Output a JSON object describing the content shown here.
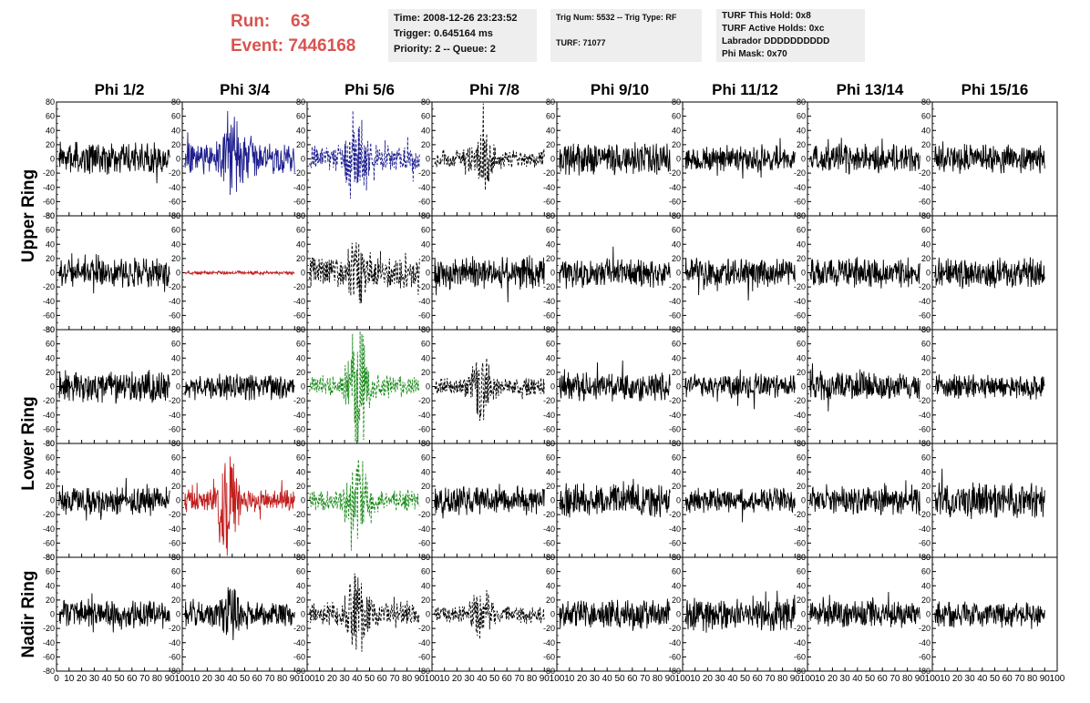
{
  "header": {
    "run_label": "Run:",
    "run_value": "63",
    "event_label": "Event:",
    "event_value": "7446168"
  },
  "info_boxes": {
    "timing": [
      "Time: 2008-12-26 23:23:52",
      "Trigger: 0.645164 ms",
      "Priority: 2 -- Queue: 2"
    ],
    "trigger": [
      "Trig Num: 5532 -- Trig Type: RF",
      "",
      "TURF: 71077"
    ],
    "turf": [
      "TURF This Hold: 0x8",
      "TURF Active Holds: 0xc",
      "Labrador DDDDDDDDDD",
      "Phi Mask: 0x70"
    ]
  },
  "chart_data": {
    "type": "line",
    "columns": [
      "Phi 1/2",
      "Phi 3/4",
      "Phi 5/6",
      "Phi 7/8",
      "Phi 9/10",
      "Phi 11/12",
      "Phi 13/14",
      "Phi 15/16"
    ],
    "row_labels": [
      "Upper Ring",
      "Lower Ring",
      "Nadir Ring"
    ],
    "xlim": [
      0,
      100
    ],
    "ylim": [
      -80,
      80
    ],
    "x_ticks": [
      "0",
      "10",
      "20",
      "30",
      "40",
      "50",
      "60",
      "70",
      "80",
      "90",
      "100"
    ],
    "y_ticks": [
      "80",
      "60",
      "40",
      "20",
      "0",
      "-20",
      "-40",
      "-60",
      "-80"
    ],
    "colors": {
      "default": "#000000",
      "blue": "#1f1f8f",
      "red": "#c21f1f",
      "green": "#1a8a1a"
    },
    "waveforms": [
      [
        {
          "color": "default",
          "style": "solid",
          "amp": 18,
          "burst": 0
        },
        {
          "color": "blue",
          "style": "solid",
          "amp": 18,
          "burst": 35
        },
        {
          "color": "blue",
          "style": "dashed",
          "amp": 14,
          "burst": 45
        },
        {
          "color": "default",
          "style": "dashed",
          "amp": 10,
          "burst": 30
        },
        {
          "color": "default",
          "style": "solid",
          "amp": 18,
          "burst": 0
        },
        {
          "color": "default",
          "style": "solid",
          "amp": 14,
          "burst": 0
        },
        {
          "color": "default",
          "style": "solid",
          "amp": 16,
          "burst": 0
        },
        {
          "color": "default",
          "style": "solid",
          "amp": 16,
          "burst": 0
        }
      ],
      [
        {
          "color": "default",
          "style": "solid",
          "amp": 16,
          "burst": 0
        },
        {
          "color": "red",
          "style": "solid",
          "amp": 2,
          "burst": 0
        },
        {
          "color": "default",
          "style": "dashed",
          "amp": 18,
          "burst": 25
        },
        {
          "color": "default",
          "style": "solid",
          "amp": 18,
          "burst": 0
        },
        {
          "color": "default",
          "style": "solid",
          "amp": 16,
          "burst": 0
        },
        {
          "color": "default",
          "style": "solid",
          "amp": 16,
          "burst": 0
        },
        {
          "color": "default",
          "style": "solid",
          "amp": 16,
          "burst": 0
        },
        {
          "color": "default",
          "style": "solid",
          "amp": 18,
          "burst": 0
        }
      ],
      [
        {
          "color": "default",
          "style": "solid",
          "amp": 18,
          "burst": 0
        },
        {
          "color": "default",
          "style": "solid",
          "amp": 14,
          "burst": 0
        },
        {
          "color": "green",
          "style": "dashed",
          "amp": 12,
          "burst": 60
        },
        {
          "color": "default",
          "style": "dashed",
          "amp": 10,
          "burst": 30
        },
        {
          "color": "default",
          "style": "solid",
          "amp": 16,
          "burst": 0
        },
        {
          "color": "default",
          "style": "solid",
          "amp": 14,
          "burst": 0
        },
        {
          "color": "default",
          "style": "solid",
          "amp": 16,
          "burst": 0
        },
        {
          "color": "default",
          "style": "solid",
          "amp": 14,
          "burst": 0
        }
      ],
      [
        {
          "color": "default",
          "style": "solid",
          "amp": 16,
          "burst": 0
        },
        {
          "color": "red",
          "style": "solid",
          "amp": 12,
          "burst": 55
        },
        {
          "color": "green",
          "style": "dashed",
          "amp": 12,
          "burst": 40
        },
        {
          "color": "default",
          "style": "solid",
          "amp": 16,
          "burst": 0
        },
        {
          "color": "default",
          "style": "solid",
          "amp": 18,
          "burst": 0
        },
        {
          "color": "default",
          "style": "solid",
          "amp": 14,
          "burst": 0
        },
        {
          "color": "default",
          "style": "solid",
          "amp": 16,
          "burst": 0
        },
        {
          "color": "default",
          "style": "solid",
          "amp": 20,
          "burst": 0
        }
      ],
      [
        {
          "color": "default",
          "style": "solid",
          "amp": 16,
          "burst": 0
        },
        {
          "color": "default",
          "style": "solid",
          "amp": 14,
          "burst": 20
        },
        {
          "color": "default",
          "style": "dashed",
          "amp": 14,
          "burst": 40
        },
        {
          "color": "default",
          "style": "dashed",
          "amp": 10,
          "burst": 20
        },
        {
          "color": "default",
          "style": "solid",
          "amp": 16,
          "burst": 0
        },
        {
          "color": "default",
          "style": "solid",
          "amp": 18,
          "burst": 0
        },
        {
          "color": "default",
          "style": "solid",
          "amp": 16,
          "burst": 0
        },
        {
          "color": "default",
          "style": "solid",
          "amp": 14,
          "burst": 0
        }
      ]
    ]
  }
}
